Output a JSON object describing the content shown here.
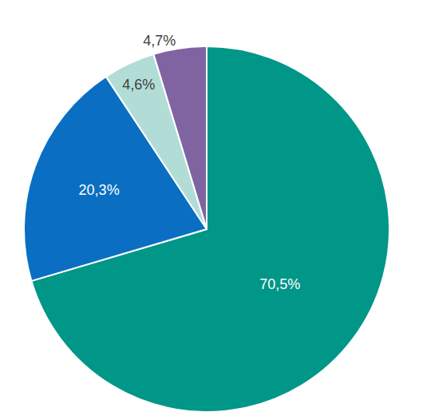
{
  "chart_data": {
    "type": "pie",
    "values": [
      70.5,
      20.3,
      4.6,
      4.7
    ],
    "value_labels": [
      "70,5%",
      "20,3%",
      "4,6%",
      "4,7%"
    ],
    "colors": [
      "#009688",
      "#0a6fc2",
      "#b2ddd6",
      "#8064a2"
    ],
    "data_labels": true
  }
}
